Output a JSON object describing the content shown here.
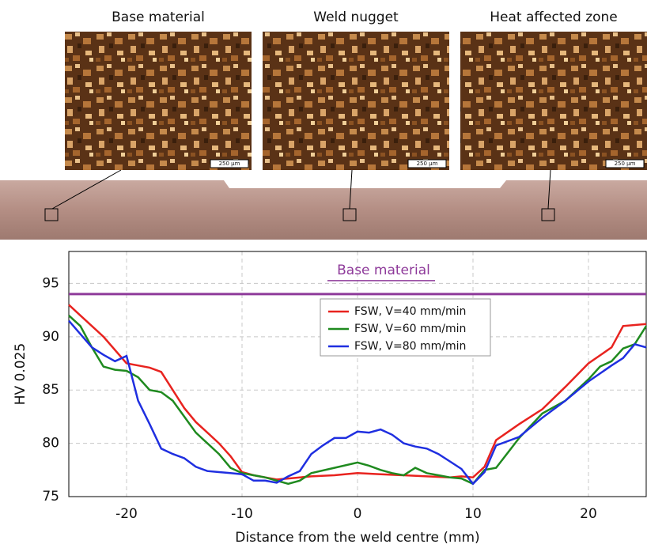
{
  "panels": [
    {
      "title": "Base material",
      "scale_bar": "250 µm"
    },
    {
      "title": "Weld nugget",
      "scale_bar": "250 µm"
    },
    {
      "title": "Heat affected zone",
      "scale_bar": "250 µm"
    }
  ],
  "chart_data": {
    "type": "line",
    "xlabel": "Distance from the weld centre (mm)",
    "ylabel": "HV 0.025",
    "xlim": [
      -25,
      25
    ],
    "xticks": [
      -20,
      -10,
      0,
      10,
      20
    ],
    "ylim": [
      75,
      98
    ],
    "yticks": [
      75,
      80,
      85,
      90,
      95
    ],
    "grid": true,
    "legend": "upper right",
    "reference_line": {
      "label": "Base material",
      "value": 94,
      "color": "#8e3a9a"
    },
    "series": [
      {
        "name": "FSW, V=40 mm/min",
        "color": "#e8231f",
        "x": [
          -25,
          -24,
          -22,
          -20,
          -19,
          -18,
          -17,
          -16,
          -15,
          -14,
          -13,
          -12,
          -11,
          -10,
          -9,
          -8,
          -7,
          -6,
          -4,
          -2,
          0,
          2,
          4,
          6,
          8,
          9,
          10,
          11,
          12,
          14,
          16,
          18,
          20,
          22,
          23,
          25
        ],
        "values": [
          93,
          92,
          90,
          87.5,
          87.3,
          87.1,
          86.7,
          85,
          83.3,
          82,
          81,
          80,
          78.8,
          77.3,
          77,
          76.8,
          76.6,
          76.7,
          76.9,
          77,
          77.2,
          77.1,
          77,
          76.9,
          76.8,
          76.9,
          76.8,
          77.8,
          80.3,
          81.8,
          83.2,
          85.3,
          87.5,
          89,
          91,
          91.2
        ]
      },
      {
        "name": "FSW, V=60 mm/min",
        "color": "#1f8a1f",
        "x": [
          -25,
          -24,
          -23,
          -22,
          -21,
          -20,
          -19,
          -18,
          -17,
          -16,
          -15,
          -14,
          -13,
          -12,
          -11,
          -10,
          -9,
          -8,
          -7,
          -6,
          -5,
          -4,
          -2,
          0,
          1,
          2,
          3,
          4,
          5,
          6,
          7,
          8,
          9,
          10,
          11,
          12,
          14,
          16,
          18,
          20,
          21,
          22,
          23,
          24,
          25
        ],
        "values": [
          92,
          91,
          89,
          87.2,
          86.9,
          86.8,
          86.2,
          85,
          84.8,
          84,
          82.5,
          81,
          80,
          79,
          77.7,
          77.2,
          77,
          76.8,
          76.5,
          76.2,
          76.5,
          77.2,
          77.7,
          78.2,
          77.9,
          77.5,
          77.2,
          77,
          77.7,
          77.2,
          77,
          76.8,
          76.7,
          76.2,
          77.5,
          77.7,
          80.5,
          82.8,
          84,
          86,
          87.2,
          87.7,
          88.9,
          89.3,
          91
        ]
      },
      {
        "name": "FSW, V=80 mm/min",
        "color": "#1f2fe0",
        "x": [
          -25,
          -23,
          -22,
          -21,
          -20,
          -19,
          -18,
          -17,
          -16,
          -15,
          -14,
          -13,
          -12,
          -11,
          -10,
          -9,
          -8,
          -7,
          -6,
          -5,
          -4,
          -3,
          -2,
          -1,
          0,
          1,
          2,
          3,
          4,
          5,
          6,
          7,
          8,
          9,
          10,
          11,
          12,
          14,
          16,
          18,
          20,
          22,
          23,
          24,
          25
        ],
        "values": [
          91.5,
          89,
          88.3,
          87.7,
          88.2,
          84,
          81.8,
          79.5,
          79,
          78.6,
          77.8,
          77.4,
          77.3,
          77.2,
          77.1,
          76.5,
          76.5,
          76.3,
          76.9,
          77.4,
          79,
          79.8,
          80.5,
          80.5,
          81.1,
          81,
          81.3,
          80.8,
          80,
          79.7,
          79.5,
          79,
          78.3,
          77.6,
          76.2,
          77.3,
          79.8,
          80.6,
          82.4,
          84,
          85.8,
          87.3,
          88,
          89.3,
          89
        ]
      }
    ]
  }
}
